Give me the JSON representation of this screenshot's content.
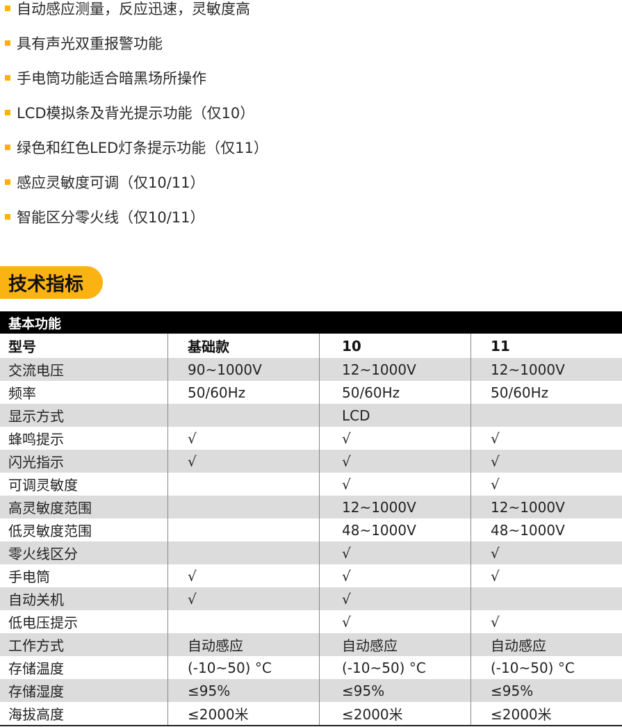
{
  "features": [
    "自动感应测量，反应迅速，灵敏度高",
    "具有声光双重报警功能",
    "手电筒功能适合暗黑场所操作",
    "LCD模拟条及背光提示功能（仅10）",
    "绿色和红色LED灯条提示功能（仅11）",
    "感应灵敏度可调（仅10/11）",
    "智能区分零火线（仅10/11）"
  ],
  "section_title": "技术指标",
  "table": {
    "group_header": "基本功能",
    "columns": [
      "型号",
      "基础款",
      "10",
      "11"
    ],
    "rows": [
      [
        "交流电压",
        "90~1000V",
        "12~1000V",
        "12~1000V"
      ],
      [
        "频率",
        "50/60Hz",
        "50/60Hz",
        "50/60Hz"
      ],
      [
        "显示方式",
        "",
        "LCD",
        ""
      ],
      [
        "蜂鸣提示",
        "√",
        "√",
        "√"
      ],
      [
        "闪光指示",
        "√",
        "√",
        "√"
      ],
      [
        "可调灵敏度",
        "",
        "√",
        "√"
      ],
      [
        "高灵敏度范围",
        "",
        "12~1000V",
        "12~1000V"
      ],
      [
        "低灵敏度范围",
        "",
        "48~1000V",
        "48~1000V"
      ],
      [
        "零火线区分",
        "",
        "√",
        "√"
      ],
      [
        "手电筒",
        "√",
        "√",
        "√"
      ],
      [
        "自动关机",
        "√",
        "√",
        ""
      ],
      [
        "低电压提示",
        "",
        "√",
        "√"
      ],
      [
        "工作方式",
        "自动感应",
        "自动感应",
        "自动感应"
      ],
      [
        "存储温度",
        "(-10~50) °C",
        "(-10~50) °C",
        "(-10~50) °C"
      ],
      [
        "存储湿度",
        "≤95%",
        "≤95%",
        "≤95%"
      ],
      [
        "海拔高度",
        "≤2000米",
        "≤2000米",
        "≤2000米"
      ]
    ]
  },
  "colors": {
    "accent": "#fbb314",
    "stripe": "#dcdcdc",
    "header": "#000000"
  }
}
